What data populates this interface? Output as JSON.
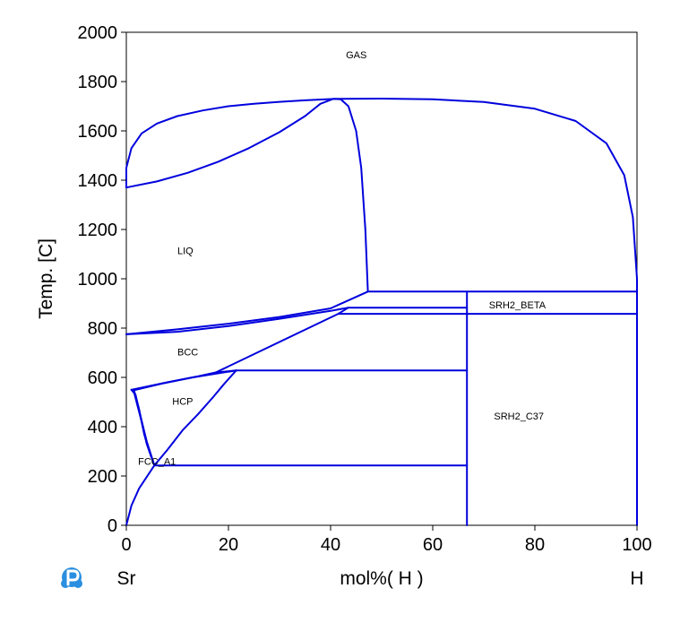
{
  "chart_data": {
    "type": "line",
    "title": "",
    "xlabel": "mol%( H )",
    "ylabel": "Temp. [C]",
    "xlim": [
      0,
      100
    ],
    "ylim": [
      0,
      2000
    ],
    "x_ticks": [
      0,
      20,
      40,
      60,
      80,
      100
    ],
    "y_ticks": [
      0,
      200,
      400,
      600,
      800,
      1000,
      1200,
      1400,
      1600,
      1800,
      2000
    ],
    "x_end_labels": {
      "left": "Sr",
      "right": "H"
    },
    "grid": false,
    "line_color": "#0000dd",
    "logo_icon": "pandat-logo-icon",
    "phase_labels": [
      {
        "text": "GAS",
        "x": 43,
        "y": 1895
      },
      {
        "text": "LIQ",
        "x": 10,
        "y": 1100
      },
      {
        "text": "BCC",
        "x": 10,
        "y": 690
      },
      {
        "text": "HCP",
        "x": 9,
        "y": 490
      },
      {
        "text": "FCC_A1",
        "x": 2.3,
        "y": 245
      },
      {
        "text": "SRH2_BETA",
        "x": 71,
        "y": 880
      },
      {
        "text": "SRH2_C37",
        "x": 72,
        "y": 430
      }
    ],
    "series": [
      {
        "points": [
          [
            0,
            1370
          ],
          [
            0,
            1450
          ],
          [
            1,
            1530
          ],
          [
            3,
            1590
          ],
          [
            6,
            1630
          ],
          [
            10,
            1660
          ],
          [
            15,
            1683
          ],
          [
            20,
            1700
          ],
          [
            25,
            1710
          ],
          [
            30,
            1718
          ],
          [
            35,
            1724
          ],
          [
            41,
            1730
          ],
          [
            50,
            1731
          ],
          [
            60,
            1728
          ],
          [
            70,
            1717
          ],
          [
            80,
            1690
          ],
          [
            88,
            1640
          ],
          [
            94,
            1550
          ],
          [
            97.5,
            1420
          ],
          [
            99.2,
            1250
          ],
          [
            100,
            1000
          ],
          [
            100,
            0
          ]
        ]
      },
      {
        "points": [
          [
            0,
            1370
          ],
          [
            6,
            1395
          ],
          [
            12,
            1430
          ],
          [
            18,
            1475
          ],
          [
            24,
            1530
          ],
          [
            30,
            1595
          ],
          [
            35,
            1660
          ],
          [
            38,
            1710
          ],
          [
            40.5,
            1730
          ],
          [
            42,
            1728
          ],
          [
            43.5,
            1700
          ],
          [
            45,
            1600
          ],
          [
            46,
            1450
          ],
          [
            46.8,
            1200
          ],
          [
            47.3,
            950
          ]
        ]
      },
      {
        "points": [
          [
            47.3,
            948
          ],
          [
            100,
            948
          ]
        ]
      },
      {
        "points": [
          [
            0,
            775
          ],
          [
            10,
            795
          ],
          [
            20,
            818
          ],
          [
            30,
            845
          ],
          [
            40,
            880
          ],
          [
            47.3,
            948
          ]
        ]
      },
      {
        "points": [
          [
            0,
            775
          ],
          [
            10,
            785
          ],
          [
            20,
            808
          ],
          [
            30,
            838
          ],
          [
            40,
            870
          ],
          [
            43.5,
            883
          ]
        ]
      },
      {
        "points": [
          [
            43.5,
            883
          ],
          [
            66.7,
            883
          ]
        ]
      },
      {
        "points": [
          [
            41.5,
            858
          ],
          [
            43.5,
            883
          ]
        ]
      },
      {
        "points": [
          [
            41.5,
            858
          ],
          [
            100,
            858
          ]
        ]
      },
      {
        "points": [
          [
            17.5,
            620
          ],
          [
            41.5,
            858
          ]
        ]
      },
      {
        "points": [
          [
            1,
            550
          ],
          [
            8,
            580
          ],
          [
            14,
            604
          ],
          [
            17.5,
            620
          ],
          [
            21.5,
            628
          ]
        ]
      },
      {
        "points": [
          [
            1.5,
            548
          ],
          [
            7,
            575
          ],
          [
            13,
            600
          ],
          [
            21.5,
            628
          ]
        ]
      },
      {
        "points": [
          [
            21.5,
            628
          ],
          [
            66.7,
            628
          ]
        ]
      },
      {
        "points": [
          [
            0,
            0
          ],
          [
            1,
            80
          ],
          [
            2.5,
            150
          ],
          [
            5.5,
            243
          ],
          [
            8,
            305
          ],
          [
            11,
            385
          ],
          [
            14,
            450
          ],
          [
            17,
            520
          ],
          [
            19,
            570
          ],
          [
            21.5,
            628
          ]
        ]
      },
      {
        "points": [
          [
            1,
            550
          ],
          [
            1.5,
            540
          ],
          [
            3,
            420
          ],
          [
            4,
            330
          ],
          [
            5.5,
            243
          ]
        ]
      },
      {
        "points": [
          [
            1,
            550
          ],
          [
            1.8,
            530
          ],
          [
            2.8,
            440
          ],
          [
            4,
            340
          ],
          [
            5.5,
            243
          ]
        ]
      },
      {
        "points": [
          [
            1.5,
            548
          ],
          [
            2.5,
            470
          ],
          [
            3.5,
            370
          ],
          [
            4.5,
            300
          ],
          [
            5.5,
            243
          ]
        ]
      },
      {
        "points": [
          [
            5.5,
            243
          ],
          [
            66.7,
            243
          ]
        ]
      },
      {
        "points": [
          [
            66.7,
            0
          ],
          [
            66.7,
            948
          ]
        ]
      }
    ]
  }
}
